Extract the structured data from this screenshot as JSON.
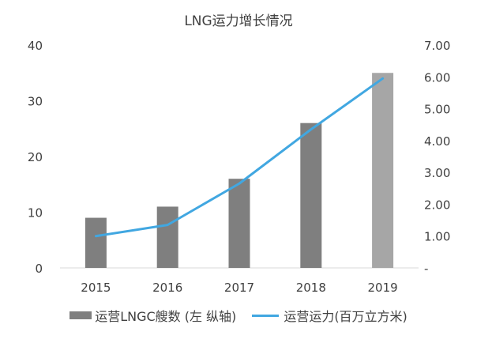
{
  "chart_data": {
    "type": "bar",
    "title": "LNG运力增长情况",
    "categories": [
      "2015",
      "2016",
      "2017",
      "2018",
      "2019"
    ],
    "series": [
      {
        "name": "运营LNGC艘数 (左 纵轴)",
        "type": "bar",
        "axis": "left",
        "values": [
          9,
          11,
          16,
          26,
          35
        ],
        "color": "#7f7f7f",
        "highlight_color": "#a6a6a6",
        "highlight_index": 4
      },
      {
        "name": "运营运力(百万立方米)",
        "type": "line",
        "axis": "right",
        "values": [
          1.0,
          1.35,
          2.65,
          4.35,
          5.95
        ],
        "color": "#41a7e1"
      }
    ],
    "y_left": {
      "ylim": [
        0,
        40
      ],
      "ticks": [
        "0",
        "10",
        "20",
        "30",
        "40"
      ]
    },
    "y_right": {
      "ylim": [
        0,
        7
      ],
      "ticks": [
        "-",
        "1.00",
        "2.00",
        "3.00",
        "4.00",
        "5.00",
        "6.00",
        "7.00"
      ]
    },
    "grid": false,
    "legend": "bottom"
  }
}
